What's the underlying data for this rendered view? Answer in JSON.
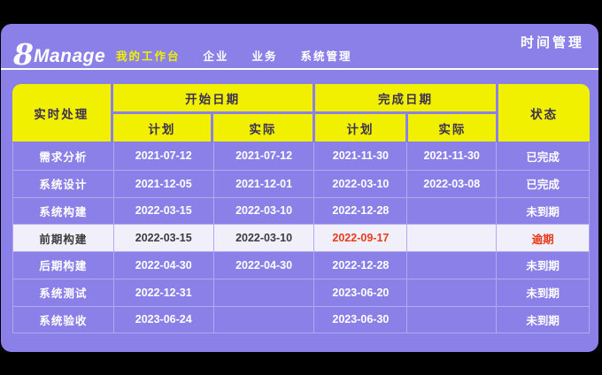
{
  "brand": {
    "logo_8": "8",
    "logo_text": "Manage"
  },
  "page_title": "时间管理",
  "nav": {
    "items": [
      {
        "label": "我的工作台",
        "active": true
      },
      {
        "label": "企业",
        "active": false
      },
      {
        "label": "业务",
        "active": false
      },
      {
        "label": "系统管理",
        "active": false
      }
    ]
  },
  "table": {
    "headers": {
      "task": "实时处理",
      "start_group": "开始日期",
      "finish_group": "完成日期",
      "status": "状态",
      "plan": "计划",
      "actual": "实际"
    },
    "rows": [
      {
        "task": "需求分析",
        "start_plan": "2021-07-12",
        "start_actual": "2021-07-12",
        "finish_plan": "2021-11-30",
        "finish_actual": "2021-11-30",
        "status": "已完成",
        "highlight": false,
        "overdue": false
      },
      {
        "task": "系统设计",
        "start_plan": "2021-12-05",
        "start_actual": "2021-12-01",
        "finish_plan": "2022-03-10",
        "finish_actual": "2022-03-08",
        "status": "已完成",
        "highlight": false,
        "overdue": false
      },
      {
        "task": "系统构建",
        "start_plan": "2022-03-15",
        "start_actual": "2022-03-10",
        "finish_plan": "2022-12-28",
        "finish_actual": "",
        "status": "未到期",
        "highlight": false,
        "overdue": false
      },
      {
        "task": "前期构建",
        "start_plan": "2022-03-15",
        "start_actual": "2022-03-10",
        "finish_plan": "2022-09-17",
        "finish_actual": "",
        "status": "逾期",
        "highlight": true,
        "overdue": true
      },
      {
        "task": "后期构建",
        "start_plan": "2022-04-30",
        "start_actual": "2022-04-30",
        "finish_plan": "2022-12-28",
        "finish_actual": "",
        "status": "未到期",
        "highlight": false,
        "overdue": false
      },
      {
        "task": "系统测试",
        "start_plan": "2022-12-31",
        "start_actual": "",
        "finish_plan": "2023-06-20",
        "finish_actual": "",
        "status": "未到期",
        "highlight": false,
        "overdue": false
      },
      {
        "task": "系统验收",
        "start_plan": "2023-06-24",
        "start_actual": "",
        "finish_plan": "2023-06-30",
        "finish_actual": "",
        "status": "未到期",
        "highlight": false,
        "overdue": false
      }
    ]
  },
  "colors": {
    "window_bg": "#8a80e8",
    "header_yellow": "#f0f000",
    "header_text": "#3c3053",
    "row_text": "#ffffff",
    "row_border": "#b2aaf0",
    "highlight_row_bg": "#f1f0fa",
    "highlight_row_text": "#3c3c3c",
    "overdue_red": "#e83c1a",
    "nav_active": "#f0f000",
    "canvas": "#000000"
  }
}
